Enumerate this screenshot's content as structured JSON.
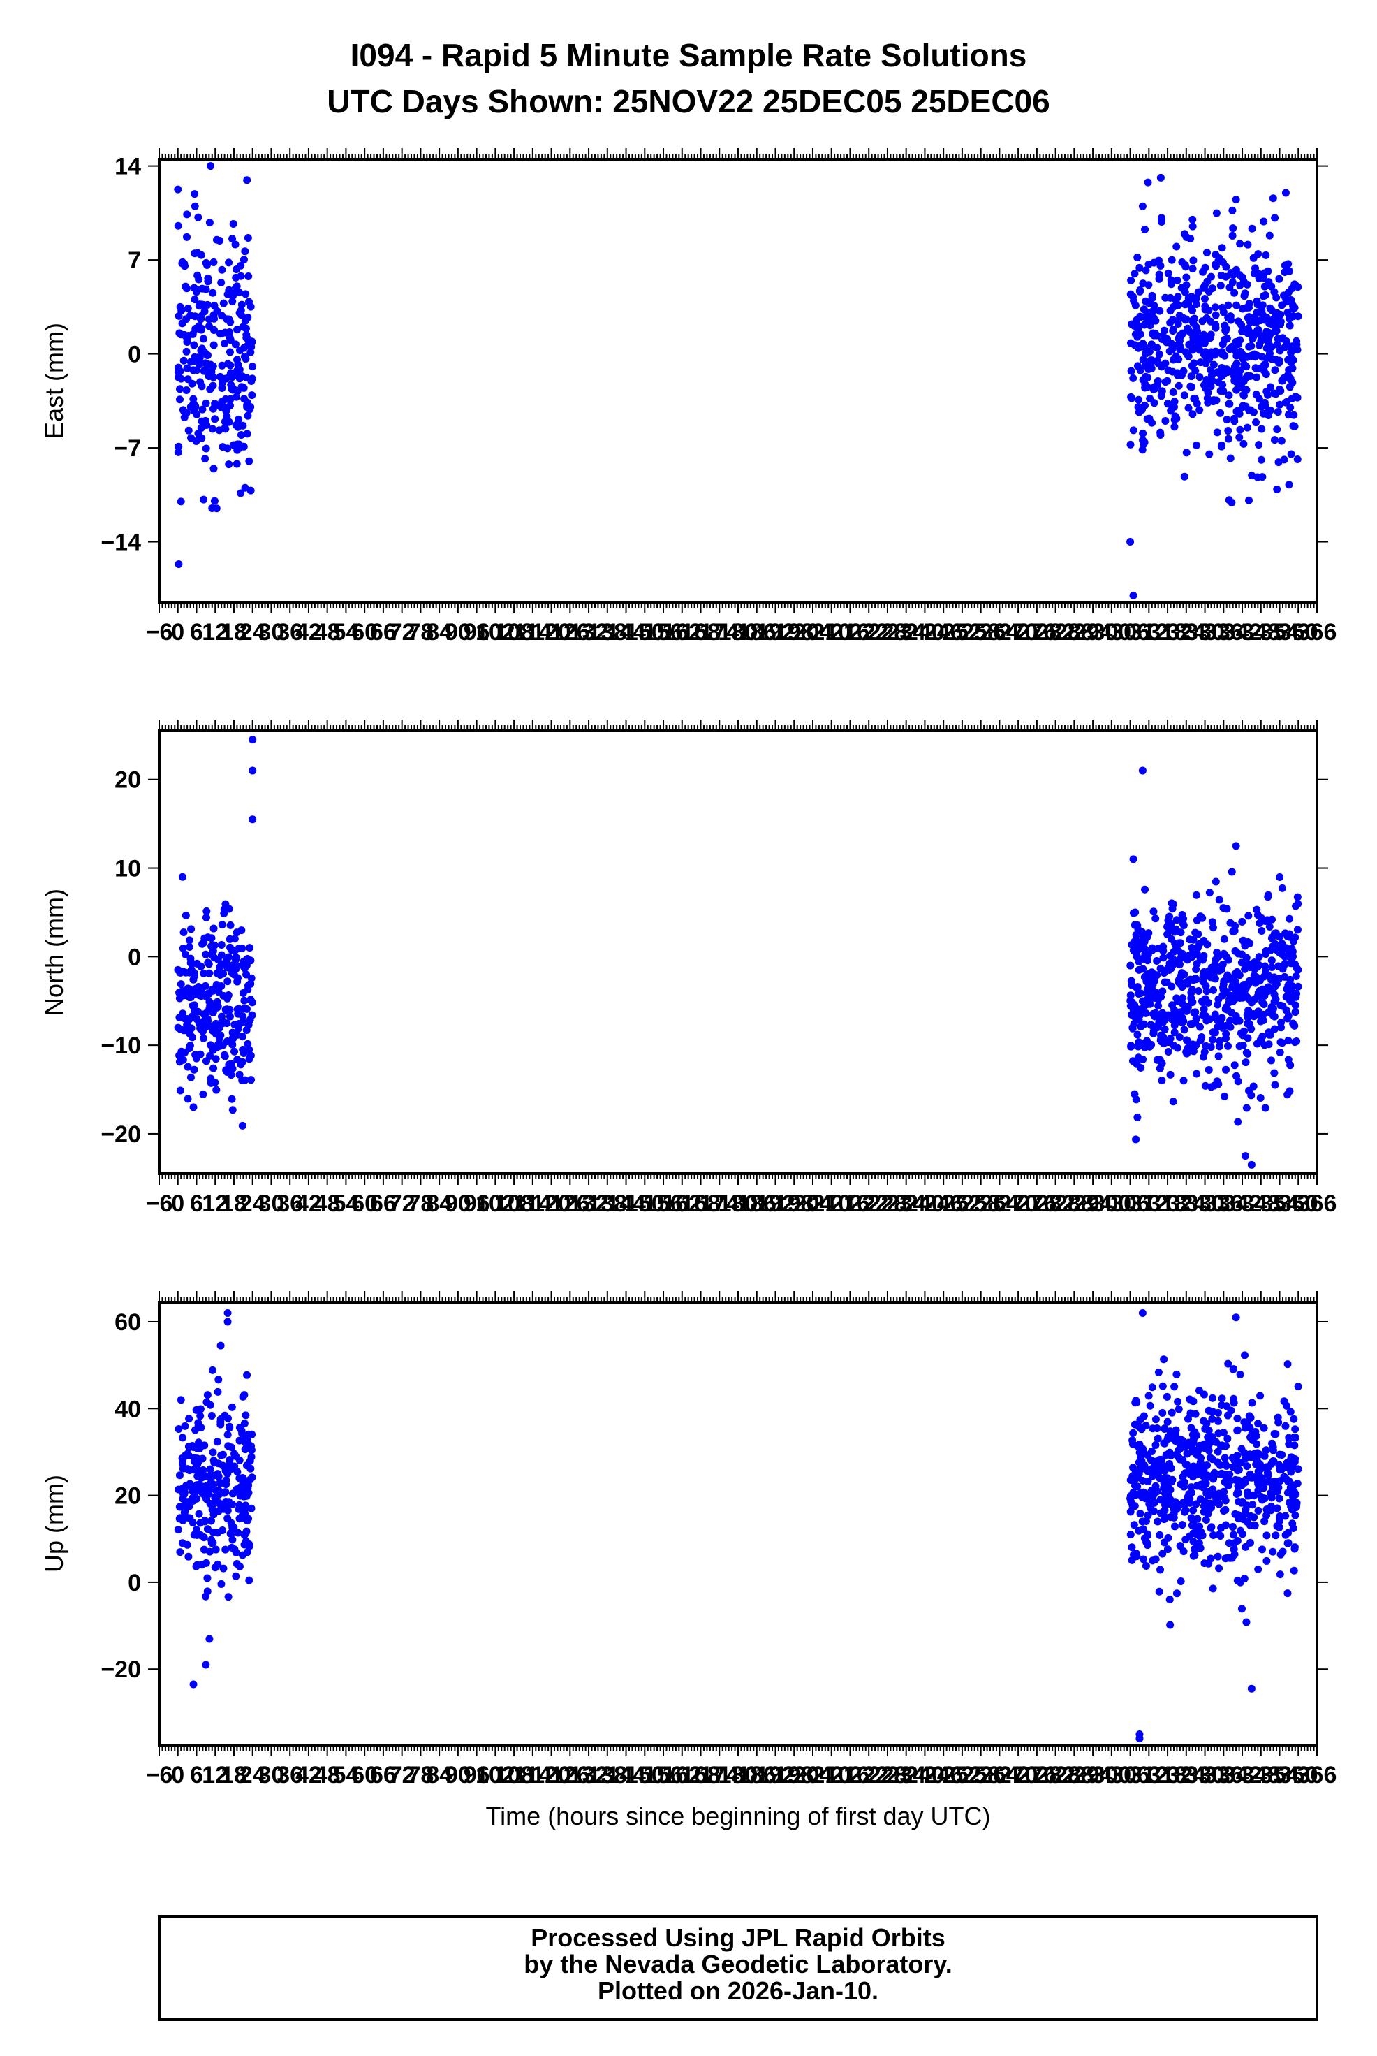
{
  "title": {
    "line1": "I094 - Rapid 5 Minute Sample Rate Solutions",
    "line2": "UTC Days Shown:  25NOV22 25DEC05 25DEC06"
  },
  "xlabel": "Time (hours since beginning of first day UTC)",
  "footer": {
    "line1": "Processed Using JPL Rapid Orbits",
    "line2": "by the Nevada Geodetic Laboratory.",
    "line3": "Plotted on 2026-Jan-10."
  },
  "chart_data": [
    {
      "type": "scatter",
      "ylabel": "East (mm)",
      "color": "#0000ff",
      "xlim": [
        -6,
        366
      ],
      "ylim": [
        -18.5,
        14.5
      ],
      "yticks": [
        14,
        7,
        0,
        -7,
        -14
      ],
      "xticks": [
        -6,
        0,
        6,
        12,
        18,
        24,
        30,
        36,
        42,
        48,
        54,
        60,
        66,
        72,
        78,
        84,
        90,
        96,
        102,
        108,
        114,
        120,
        126,
        132,
        138,
        144,
        150,
        156,
        162,
        168,
        174,
        180,
        186,
        192,
        198,
        204,
        210,
        216,
        222,
        228,
        234,
        240,
        246,
        252,
        258,
        264,
        270,
        276,
        282,
        288,
        294,
        300,
        306,
        312,
        318,
        324,
        330,
        336,
        342,
        348,
        354,
        360,
        366
      ],
      "clusters": [
        {
          "x_range": [
            0,
            24
          ],
          "y_center": 0.0,
          "y_spread": 4.5,
          "extremes": [
            [
              10.5,
              14.0
            ],
            [
              5.5,
              11.0
            ],
            [
              11.0,
              -11.5
            ],
            [
              1.0,
              -11.0
            ]
          ]
        },
        {
          "x_range": [
            306,
            360
          ],
          "y_center": 0.5,
          "y_spread": 4.0,
          "extremes": [
            [
              307.0,
              -18.0
            ],
            [
              306.0,
              -14.0
            ],
            [
              310.0,
              11.0
            ],
            [
              356.0,
              12.0
            ],
            [
              340.0,
              11.5
            ]
          ]
        }
      ]
    },
    {
      "type": "scatter",
      "ylabel": "North (mm)",
      "color": "#0000ff",
      "xlim": [
        -6,
        366
      ],
      "ylim": [
        -24.5,
        25.5
      ],
      "yticks": [
        20,
        10,
        0,
        -10,
        -20
      ],
      "xticks": [
        -6,
        0,
        6,
        12,
        18,
        24,
        30,
        36,
        42,
        48,
        54,
        60,
        66,
        72,
        78,
        84,
        90,
        96,
        102,
        108,
        114,
        120,
        126,
        132,
        138,
        144,
        150,
        156,
        162,
        168,
        174,
        180,
        186,
        192,
        198,
        204,
        210,
        216,
        222,
        228,
        234,
        240,
        246,
        252,
        258,
        264,
        270,
        276,
        282,
        288,
        294,
        300,
        306,
        312,
        318,
        324,
        330,
        336,
        342,
        348,
        354,
        360,
        366
      ],
      "clusters": [
        {
          "x_range": [
            0,
            24
          ],
          "y_center": -6.0,
          "y_spread": 5.0,
          "extremes": [
            [
              24.0,
              24.5
            ],
            [
              24.0,
              21.0
            ],
            [
              24.0,
              15.5
            ],
            [
              1.5,
              9.0
            ],
            [
              5.0,
              -17.0
            ]
          ]
        },
        {
          "x_range": [
            306,
            360
          ],
          "y_center": -4.0,
          "y_spread": 5.0,
          "extremes": [
            [
              310.0,
              21.0
            ],
            [
              345.0,
              -23.5
            ],
            [
              343.0,
              -22.5
            ],
            [
              340.0,
              12.5
            ],
            [
              307.0,
              11.0
            ]
          ]
        }
      ]
    },
    {
      "type": "scatter",
      "ylabel": "Up (mm)",
      "color": "#0000ff",
      "xlim": [
        -6,
        366
      ],
      "ylim": [
        -37.5,
        64.5
      ],
      "yticks": [
        60,
        40,
        20,
        0,
        -20
      ],
      "xticks": [
        -6,
        0,
        6,
        12,
        18,
        24,
        30,
        36,
        42,
        48,
        54,
        60,
        66,
        72,
        78,
        84,
        90,
        96,
        102,
        108,
        114,
        120,
        126,
        132,
        138,
        144,
        150,
        156,
        162,
        168,
        174,
        180,
        186,
        192,
        198,
        204,
        210,
        216,
        222,
        228,
        234,
        240,
        246,
        252,
        258,
        264,
        270,
        276,
        282,
        288,
        294,
        300,
        306,
        312,
        318,
        324,
        330,
        336,
        342,
        348,
        354,
        360,
        366
      ],
      "clusters": [
        {
          "x_range": [
            0,
            24
          ],
          "y_center": 20.0,
          "y_spread": 11.0,
          "extremes": [
            [
              16.0,
              62.0
            ],
            [
              16.0,
              60.0
            ],
            [
              5.0,
              -23.5
            ],
            [
              9.0,
              -19.0
            ],
            [
              1.0,
              42.0
            ]
          ]
        },
        {
          "x_range": [
            306,
            360
          ],
          "y_center": 24.0,
          "y_spread": 10.0,
          "extremes": [
            [
              309.0,
              -36.0
            ],
            [
              309.0,
              -35.0
            ],
            [
              310.0,
              62.0
            ],
            [
              340.0,
              61.0
            ],
            [
              345.0,
              -24.5
            ]
          ]
        }
      ]
    }
  ]
}
